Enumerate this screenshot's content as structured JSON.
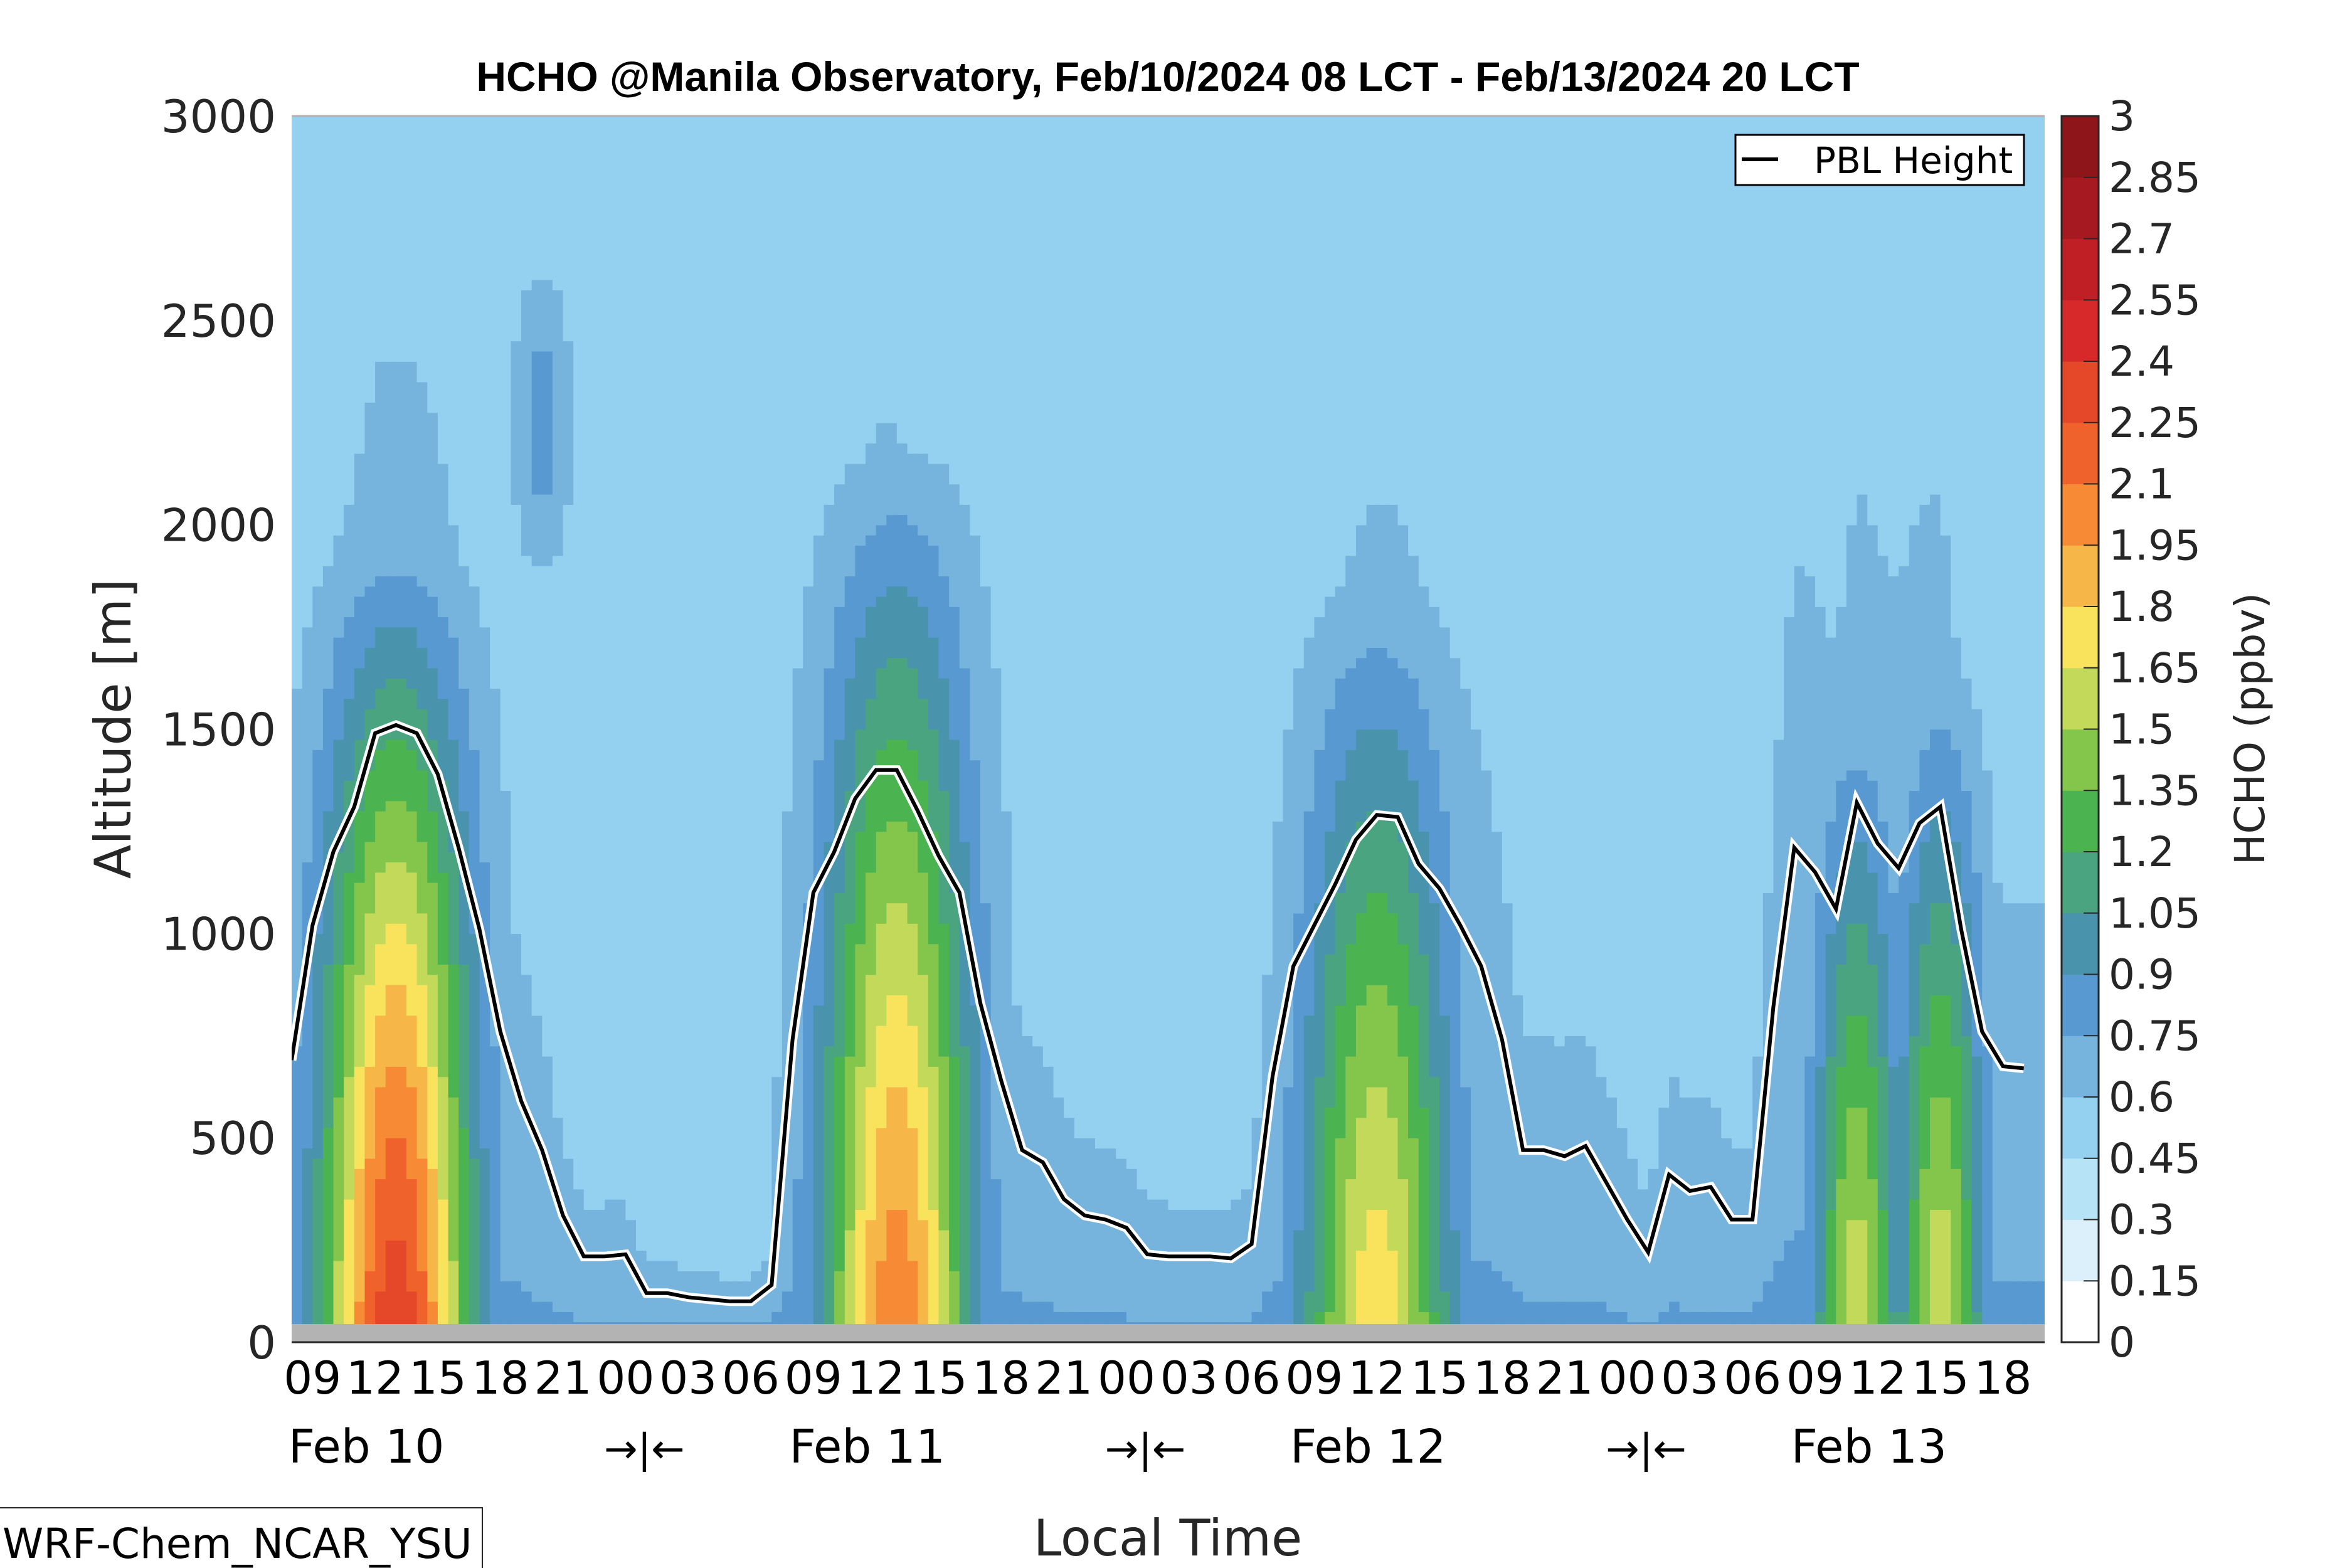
{
  "chart_data": {
    "type": "heatmap",
    "subtype": "filled-contour time-height cross-section with line overlay",
    "title": "HCHO @Manila Observatory, Feb/10/2024 08 LCT - Feb/13/2024 20 LCT",
    "xlabel": "Local Time",
    "ylabel": "Altitude [m]",
    "ylim": [
      0,
      3000
    ],
    "yticks": [
      "0",
      "500",
      "1000",
      "1500",
      "2000",
      "2500",
      "3000"
    ],
    "xlim_hours": [
      0,
      84
    ],
    "x_start": "Feb/10/2024 08 LCT",
    "hour_ticks": [
      {
        "h": 1,
        "label": "09"
      },
      {
        "h": 4,
        "label": "12"
      },
      {
        "h": 7,
        "label": "15"
      },
      {
        "h": 10,
        "label": "18"
      },
      {
        "h": 13,
        "label": "21"
      },
      {
        "h": 16,
        "label": "00"
      },
      {
        "h": 19,
        "label": "03"
      },
      {
        "h": 22,
        "label": "06"
      },
      {
        "h": 25,
        "label": "09"
      },
      {
        "h": 28,
        "label": "12"
      },
      {
        "h": 31,
        "label": "15"
      },
      {
        "h": 34,
        "label": "18"
      },
      {
        "h": 37,
        "label": "21"
      },
      {
        "h": 40,
        "label": "00"
      },
      {
        "h": 43,
        "label": "03"
      },
      {
        "h": 46,
        "label": "06"
      },
      {
        "h": 49,
        "label": "09"
      },
      {
        "h": 52,
        "label": "12"
      },
      {
        "h": 55,
        "label": "15"
      },
      {
        "h": 58,
        "label": "18"
      },
      {
        "h": 61,
        "label": "21"
      },
      {
        "h": 64,
        "label": "00"
      },
      {
        "h": 67,
        "label": "03"
      },
      {
        "h": 70,
        "label": "06"
      },
      {
        "h": 73,
        "label": "09"
      },
      {
        "h": 76,
        "label": "12"
      },
      {
        "h": 79,
        "label": "15"
      },
      {
        "h": 82,
        "label": "18"
      }
    ],
    "day_labels": [
      {
        "h": 4,
        "label": "Feb 10"
      },
      {
        "h": 16,
        "label": "→|←"
      },
      {
        "h": 28,
        "label": "Feb 11"
      },
      {
        "h": 40,
        "label": "→|←"
      },
      {
        "h": 52,
        "label": "Feb 12"
      },
      {
        "h": 64,
        "label": "→|←"
      },
      {
        "h": 76,
        "label": "Feb 13"
      }
    ],
    "colorbar": {
      "label": "HCHO (ppbv)",
      "levels": [
        "0",
        "0.15",
        "0.3",
        "0.45",
        "0.6",
        "0.75",
        "0.9",
        "1.05",
        "1.2",
        "1.35",
        "1.5",
        "1.65",
        "1.8",
        "1.95",
        "2.1",
        "2.25",
        "2.4",
        "2.55",
        "2.7",
        "2.85",
        "3"
      ],
      "colors": [
        "#ffffff",
        "#dbf0fb",
        "#b7e3f7",
        "#94d1f0",
        "#76b4de",
        "#5799d0",
        "#4993ad",
        "#4aa47f",
        "#4bb34f",
        "#84c54c",
        "#c3d95a",
        "#fae35c",
        "#f7b648",
        "#f68a35",
        "#f0622b",
        "#e54829",
        "#d8292a",
        "#c01f26",
        "#a61920",
        "#8e161a"
      ]
    },
    "ground_band_color": "#b3b3b3",
    "series": [
      {
        "name": "PBL Height",
        "color": "#000000",
        "halo": "#ffffff",
        "points": [
          [
            0,
            690
          ],
          [
            1,
            1020
          ],
          [
            2,
            1200
          ],
          [
            3,
            1310
          ],
          [
            4,
            1490
          ],
          [
            5,
            1510
          ],
          [
            6,
            1490
          ],
          [
            7,
            1390
          ],
          [
            8,
            1210
          ],
          [
            9,
            1010
          ],
          [
            10,
            760
          ],
          [
            11,
            590
          ],
          [
            12,
            470
          ],
          [
            13,
            310
          ],
          [
            14,
            210
          ],
          [
            15,
            210
          ],
          [
            16,
            215
          ],
          [
            17,
            120
          ],
          [
            18,
            120
          ],
          [
            19,
            110
          ],
          [
            20,
            105
          ],
          [
            21,
            100
          ],
          [
            22,
            100
          ],
          [
            23,
            140
          ],
          [
            24,
            740
          ],
          [
            25,
            1100
          ],
          [
            26,
            1200
          ],
          [
            27,
            1330
          ],
          [
            28,
            1400
          ],
          [
            29,
            1400
          ],
          [
            30,
            1300
          ],
          [
            31,
            1190
          ],
          [
            32,
            1100
          ],
          [
            33,
            830
          ],
          [
            34,
            640
          ],
          [
            35,
            470
          ],
          [
            36,
            440
          ],
          [
            37,
            350
          ],
          [
            38,
            310
          ],
          [
            39,
            300
          ],
          [
            40,
            280
          ],
          [
            41,
            215
          ],
          [
            42,
            210
          ],
          [
            43,
            210
          ],
          [
            44,
            210
          ],
          [
            45,
            205
          ],
          [
            46,
            240
          ],
          [
            47,
            650
          ],
          [
            48,
            920
          ],
          [
            49,
            1020
          ],
          [
            50,
            1120
          ],
          [
            51,
            1230
          ],
          [
            52,
            1290
          ],
          [
            53,
            1285
          ],
          [
            54,
            1170
          ],
          [
            55,
            1110
          ],
          [
            56,
            1020
          ],
          [
            57,
            920
          ],
          [
            58,
            740
          ],
          [
            59,
            470
          ],
          [
            60,
            470
          ],
          [
            61,
            455
          ],
          [
            62,
            480
          ],
          [
            63,
            390
          ],
          [
            64,
            300
          ],
          [
            65,
            220
          ],
          [
            66,
            410
          ],
          [
            67,
            370
          ],
          [
            68,
            380
          ],
          [
            69,
            300
          ],
          [
            70,
            300
          ],
          [
            71,
            820
          ],
          [
            72,
            1210
          ],
          [
            73,
            1150
          ],
          [
            74,
            1060
          ],
          [
            75,
            1320
          ],
          [
            76,
            1220
          ],
          [
            77,
            1160
          ],
          [
            78,
            1270
          ],
          [
            79,
            1310
          ],
          [
            80,
            1010
          ],
          [
            81,
            760
          ],
          [
            82,
            675
          ],
          [
            83,
            670
          ]
        ]
      }
    ],
    "contour_features": [
      {
        "name": "feb10-peak",
        "center_h": 5,
        "peak_value": 2.25,
        "top_m": 2100
      },
      {
        "name": "feb10-aloft-blob",
        "center_h": 12,
        "peak_value": 0.75,
        "alt_m": 2250
      },
      {
        "name": "feb11-peak",
        "center_h": 29,
        "peak_value": 1.95,
        "top_m": 2300
      },
      {
        "name": "feb12-peak",
        "center_h": 52,
        "peak_value": 1.65,
        "top_m": 2000
      },
      {
        "name": "feb13-peak-a",
        "center_h": 75,
        "peak_value": 1.5,
        "top_m": 1700
      },
      {
        "name": "feb13-peak-b",
        "center_h": 79,
        "peak_value": 1.5,
        "top_m": 1800
      }
    ],
    "legend": {
      "entries": [
        "PBL Height"
      ],
      "placement": "top-right"
    }
  },
  "model_label": "WRF-Chem_NCAR_YSU"
}
